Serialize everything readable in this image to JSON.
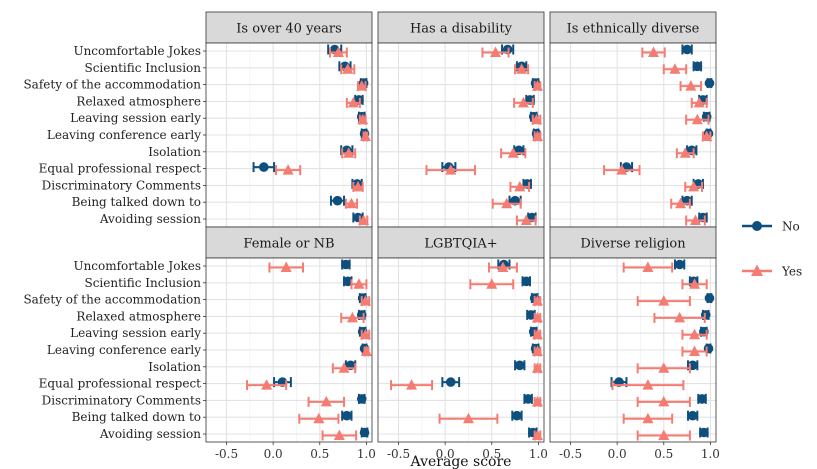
{
  "chart_data": {
    "type": "errorbar-dot",
    "xlabel": "Average score",
    "xlim": [
      -0.72,
      1.06
    ],
    "xticks": [
      "-0.5",
      "0.0",
      "0.5",
      "1.0"
    ],
    "xtick_values": [
      -0.5,
      0.0,
      0.5,
      1.0
    ],
    "grid": true,
    "legend": {
      "placement": "right",
      "entries": [
        {
          "name": "No",
          "color": "#0f4f7d",
          "marker": "circle"
        },
        {
          "name": "Yes",
          "color": "#f47c72",
          "marker": "triangle"
        }
      ]
    },
    "categories": [
      "Uncomfortable Jokes",
      "Scientific Inclusion",
      "Safety of the accommodation",
      "Relaxed atmosphere",
      "Leaving session early",
      "Leaving conference early",
      "Isolation",
      "Equal professional respect",
      "Discriminatory Comments",
      "Being talked down to",
      "Avoiding session"
    ],
    "panels": [
      {
        "title": "Is over 40 years",
        "series": [
          {
            "name": "No",
            "values": [
              0.66,
              0.77,
              0.97,
              0.92,
              0.95,
              0.98,
              0.79,
              -0.1,
              0.9,
              0.69,
              0.91
            ],
            "lo": [
              0.59,
              0.71,
              0.94,
              0.88,
              0.92,
              0.95,
              0.73,
              -0.21,
              0.85,
              0.62,
              0.86
            ],
            "hi": [
              0.73,
              0.83,
              1.0,
              0.96,
              0.98,
              1.0,
              0.85,
              0.01,
              0.95,
              0.76,
              0.96
            ]
          },
          {
            "name": "Yes",
            "values": [
              0.7,
              0.8,
              0.95,
              0.86,
              0.96,
              0.99,
              0.81,
              0.16,
              0.91,
              0.84,
              0.97
            ],
            "lo": [
              0.61,
              0.73,
              0.91,
              0.79,
              0.93,
              0.97,
              0.74,
              0.03,
              0.86,
              0.78,
              0.93
            ],
            "hi": [
              0.79,
              0.87,
              0.99,
              0.93,
              0.99,
              1.01,
              0.88,
              0.29,
              0.96,
              0.9,
              1.01
            ]
          }
        ]
      },
      {
        "title": "Has a disability",
        "series": [
          {
            "name": "No",
            "values": [
              0.67,
              0.82,
              0.97,
              0.91,
              0.95,
              0.98,
              0.79,
              0.04,
              0.88,
              0.75,
              0.93
            ],
            "lo": [
              0.61,
              0.77,
              0.94,
              0.87,
              0.92,
              0.95,
              0.74,
              -0.03,
              0.84,
              0.69,
              0.89
            ],
            "hi": [
              0.73,
              0.87,
              1.0,
              0.95,
              0.98,
              1.0,
              0.84,
              0.11,
              0.92,
              0.81,
              0.97
            ]
          },
          {
            "name": "Yes",
            "values": [
              0.54,
              0.82,
              0.99,
              0.84,
              0.98,
              0.99,
              0.73,
              0.06,
              0.8,
              0.66,
              0.87
            ],
            "lo": [
              0.4,
              0.75,
              0.96,
              0.74,
              0.94,
              0.96,
              0.6,
              -0.2,
              0.7,
              0.51,
              0.77
            ],
            "hi": [
              0.68,
              0.89,
              1.02,
              0.94,
              1.02,
              1.02,
              0.86,
              0.32,
              0.9,
              0.81,
              0.97
            ]
          }
        ]
      },
      {
        "title": "Is ethnically diverse",
        "series": [
          {
            "name": "No",
            "values": [
              0.75,
              0.86,
              0.99,
              0.92,
              0.96,
              0.98,
              0.8,
              0.1,
              0.87,
              0.75,
              0.92
            ],
            "lo": [
              0.7,
              0.82,
              0.97,
              0.88,
              0.93,
              0.96,
              0.75,
              0.04,
              0.82,
              0.7,
              0.88
            ],
            "hi": [
              0.8,
              0.9,
              1.01,
              0.96,
              0.99,
              1.0,
              0.85,
              0.16,
              0.92,
              0.8,
              0.96
            ]
          },
          {
            "name": "Yes",
            "values": [
              0.39,
              0.62,
              0.79,
              0.88,
              0.86,
              0.96,
              0.73,
              0.05,
              0.82,
              0.68,
              0.84
            ],
            "lo": [
              0.27,
              0.5,
              0.68,
              0.8,
              0.74,
              0.92,
              0.64,
              -0.14,
              0.73,
              0.58,
              0.74
            ],
            "hi": [
              0.51,
              0.74,
              0.9,
              0.96,
              0.98,
              1.0,
              0.82,
              0.24,
              0.91,
              0.78,
              0.94
            ]
          }
        ]
      },
      {
        "title": "Female or NB",
        "series": [
          {
            "name": "No",
            "values": [
              0.78,
              0.8,
              0.96,
              0.95,
              0.96,
              0.98,
              0.83,
              0.1,
              0.95,
              0.79,
              0.98
            ],
            "lo": [
              0.74,
              0.76,
              0.93,
              0.92,
              0.93,
              0.96,
              0.78,
              0.01,
              0.92,
              0.74,
              0.95
            ],
            "hi": [
              0.82,
              0.84,
              0.99,
              0.98,
              0.99,
              1.0,
              0.88,
              0.19,
              0.98,
              0.84,
              1.01
            ]
          },
          {
            "name": "Yes",
            "values": [
              0.14,
              0.92,
              0.99,
              0.85,
              0.99,
              1.0,
              0.76,
              -0.07,
              0.57,
              0.49,
              0.71
            ],
            "lo": [
              -0.04,
              0.84,
              0.95,
              0.73,
              0.95,
              0.98,
              0.64,
              -0.28,
              0.38,
              0.28,
              0.53
            ],
            "hi": [
              0.32,
              1.0,
              1.03,
              0.97,
              1.03,
              1.02,
              0.88,
              0.14,
              0.76,
              0.7,
              0.89
            ]
          }
        ]
      },
      {
        "title": "LGBTQIA+",
        "series": [
          {
            "name": "No",
            "values": [
              0.63,
              0.87,
              0.96,
              0.92,
              0.95,
              0.97,
              0.8,
              0.06,
              0.89,
              0.77,
              0.94
            ],
            "lo": [
              0.57,
              0.83,
              0.93,
              0.88,
              0.92,
              0.94,
              0.75,
              -0.03,
              0.85,
              0.72,
              0.9
            ],
            "hi": [
              0.69,
              0.91,
              0.99,
              0.96,
              0.98,
              1.0,
              0.85,
              0.15,
              0.93,
              0.82,
              0.98
            ]
          },
          {
            "name": "Yes",
            "values": [
              0.62,
              0.5,
              0.99,
              0.99,
              0.99,
              0.99,
              0.99,
              -0.36,
              0.99,
              0.25,
              0.99
            ],
            "lo": [
              0.47,
              0.27,
              0.96,
              0.96,
              0.96,
              0.96,
              0.96,
              -0.58,
              0.96,
              -0.06,
              0.96
            ],
            "hi": [
              0.77,
              0.73,
              1.02,
              1.02,
              1.02,
              1.02,
              1.02,
              -0.14,
              1.02,
              0.56,
              1.02
            ]
          }
        ]
      },
      {
        "title": "Diverse religion",
        "series": [
          {
            "name": "No",
            "values": [
              0.67,
              0.82,
              0.99,
              0.95,
              0.93,
              0.98,
              0.81,
              0.02,
              0.91,
              0.81,
              0.93
            ],
            "lo": [
              0.62,
              0.78,
              0.97,
              0.92,
              0.9,
              0.96,
              0.76,
              -0.06,
              0.87,
              0.76,
              0.89
            ],
            "hi": [
              0.72,
              0.86,
              1.01,
              0.98,
              0.96,
              1.0,
              0.86,
              0.1,
              0.95,
              0.86,
              0.97
            ]
          },
          {
            "name": "Yes",
            "values": [
              0.33,
              0.83,
              0.5,
              0.67,
              0.83,
              0.83,
              0.5,
              0.33,
              0.5,
              0.33,
              0.5
            ],
            "lo": [
              0.07,
              0.7,
              0.22,
              0.4,
              0.7,
              0.7,
              0.22,
              -0.05,
              0.22,
              0.07,
              0.22
            ],
            "hi": [
              0.59,
              0.96,
              0.78,
              0.94,
              0.96,
              0.96,
              0.78,
              0.71,
              0.78,
              0.59,
              0.78
            ]
          }
        ]
      }
    ]
  }
}
